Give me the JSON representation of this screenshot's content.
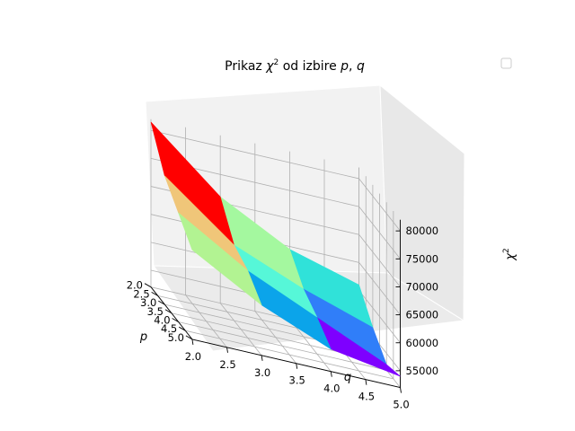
{
  "chart_data": {
    "type": "surface3d",
    "title": "Prikaz χ² od izbire p, q",
    "title_parts": {
      "prefix": "Prikaz ",
      "chi": "χ",
      "sup": "2",
      "mid": " od izbire ",
      "p": "p",
      "comma": ", ",
      "q": "q"
    },
    "xlabel": "p",
    "ylabel": "q",
    "zlabel": {
      "chi": "χ",
      "sup": "2"
    },
    "p_ticks": [
      "2.0",
      "2.5",
      "3.0",
      "3.5",
      "4.0",
      "4.5",
      "5.0"
    ],
    "q_ticks": [
      "2.0",
      "2.5",
      "3.0",
      "3.5",
      "4.0",
      "4.5",
      "5.0"
    ],
    "z_ticks": [
      "55000",
      "60000",
      "65000",
      "70000",
      "75000",
      "80000"
    ],
    "p_grid": [
      2.0,
      3.0,
      4.0,
      5.0
    ],
    "q_grid": [
      2.0,
      3.0,
      4.0,
      5.0
    ],
    "z_values": [
      [
        81500,
        71000,
        64500,
        61000
      ],
      [
        75000,
        65500,
        60500,
        56500
      ],
      [
        71500,
        64000,
        58500,
        53000
      ],
      [
        68000,
        61000,
        56000,
        54000
      ]
    ],
    "colormap": "rainbow",
    "face_colors": [
      [
        "#ff0000",
        "#a4f89f",
        "#30e2d9"
      ],
      [
        "#f0c679",
        "#56f7d8",
        "#307ef9"
      ],
      [
        "#b2f392",
        "#0ba4ea",
        "#7e00ff"
      ]
    ],
    "legend": {
      "placement": "top-right",
      "entries": [
        ""
      ]
    },
    "pane_color": "#f2f2f2",
    "grid": true
  }
}
